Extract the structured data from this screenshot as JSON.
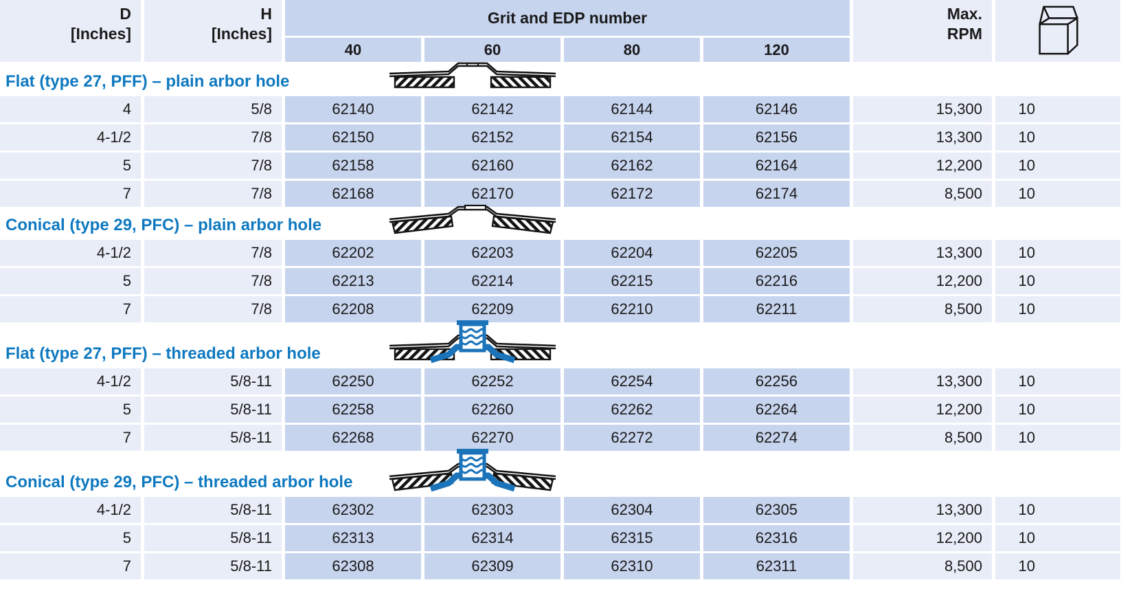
{
  "page": {
    "background": "#ffffff"
  },
  "colors": {
    "accent_blue": "#0e79c0",
    "cell_blue": "#c7d4ee",
    "cell_light": "#e9edf8",
    "diagram_blue": "#1b74ba",
    "text": "#1a1a1a"
  },
  "header": {
    "d_label_line1": "D",
    "d_label_line2": "[Inches]",
    "h_label_line1": "H",
    "h_label_line2": "[Inches]",
    "grit_edp_label": "Grit and EDP number",
    "grit_levels": [
      "40",
      "60",
      "80",
      "120"
    ],
    "max_rpm_line1": "Max.",
    "max_rpm_line2": "RPM",
    "package_icon": "open-carton-box-icon"
  },
  "sections": [
    {
      "title": "Flat (type 27, PFF) – plain arbor hole",
      "diagram": "flat-disc-profile-icon",
      "rows": [
        {
          "d": "4",
          "h": "5/8",
          "edp": [
            "62140",
            "62142",
            "62144",
            "62146"
          ],
          "max_rpm": "15,300",
          "pkg_qty": "10"
        },
        {
          "d": "4-1/2",
          "h": "7/8",
          "edp": [
            "62150",
            "62152",
            "62154",
            "62156"
          ],
          "max_rpm": "13,300",
          "pkg_qty": "10"
        },
        {
          "d": "5",
          "h": "7/8",
          "edp": [
            "62158",
            "62160",
            "62162",
            "62164"
          ],
          "max_rpm": "12,200",
          "pkg_qty": "10"
        },
        {
          "d": "7",
          "h": "7/8",
          "edp": [
            "62168",
            "62170",
            "62172",
            "62174"
          ],
          "max_rpm": "8,500",
          "pkg_qty": "10"
        }
      ]
    },
    {
      "title": "Conical (type 29, PFC) – plain arbor hole",
      "diagram": "conical-disc-profile-icon",
      "rows": [
        {
          "d": "4-1/2",
          "h": "7/8",
          "edp": [
            "62202",
            "62203",
            "62204",
            "62205"
          ],
          "max_rpm": "13,300",
          "pkg_qty": "10"
        },
        {
          "d": "5",
          "h": "7/8",
          "edp": [
            "62213",
            "62214",
            "62215",
            "62216"
          ],
          "max_rpm": "12,200",
          "pkg_qty": "10"
        },
        {
          "d": "7",
          "h": "7/8",
          "edp": [
            "62208",
            "62209",
            "62210",
            "62211"
          ],
          "max_rpm": "8,500",
          "pkg_qty": "10"
        }
      ]
    },
    {
      "title": "Flat (type 27, PFF) – threaded arbor hole",
      "diagram": "flat-disc-threaded-profile-icon",
      "rows": [
        {
          "d": "4-1/2",
          "h": "5/8-11",
          "edp": [
            "62250",
            "62252",
            "62254",
            "62256"
          ],
          "max_rpm": "13,300",
          "pkg_qty": "10"
        },
        {
          "d": "5",
          "h": "5/8-11",
          "edp": [
            "62258",
            "62260",
            "62262",
            "62264"
          ],
          "max_rpm": "12,200",
          "pkg_qty": "10"
        },
        {
          "d": "7",
          "h": "5/8-11",
          "edp": [
            "62268",
            "62270",
            "62272",
            "62274"
          ],
          "max_rpm": "8,500",
          "pkg_qty": "10"
        }
      ]
    },
    {
      "title": "Conical (type 29, PFC) – threaded arbor hole",
      "diagram": "conical-disc-threaded-profile-icon",
      "rows": [
        {
          "d": "4-1/2",
          "h": "5/8-11",
          "edp": [
            "62302",
            "62303",
            "62304",
            "62305"
          ],
          "max_rpm": "13,300",
          "pkg_qty": "10"
        },
        {
          "d": "5",
          "h": "5/8-11",
          "edp": [
            "62313",
            "62314",
            "62315",
            "62316"
          ],
          "max_rpm": "12,200",
          "pkg_qty": "10"
        },
        {
          "d": "7",
          "h": "5/8-11",
          "edp": [
            "62308",
            "62309",
            "62310",
            "62311"
          ],
          "max_rpm": "8,500",
          "pkg_qty": "10"
        }
      ]
    }
  ]
}
